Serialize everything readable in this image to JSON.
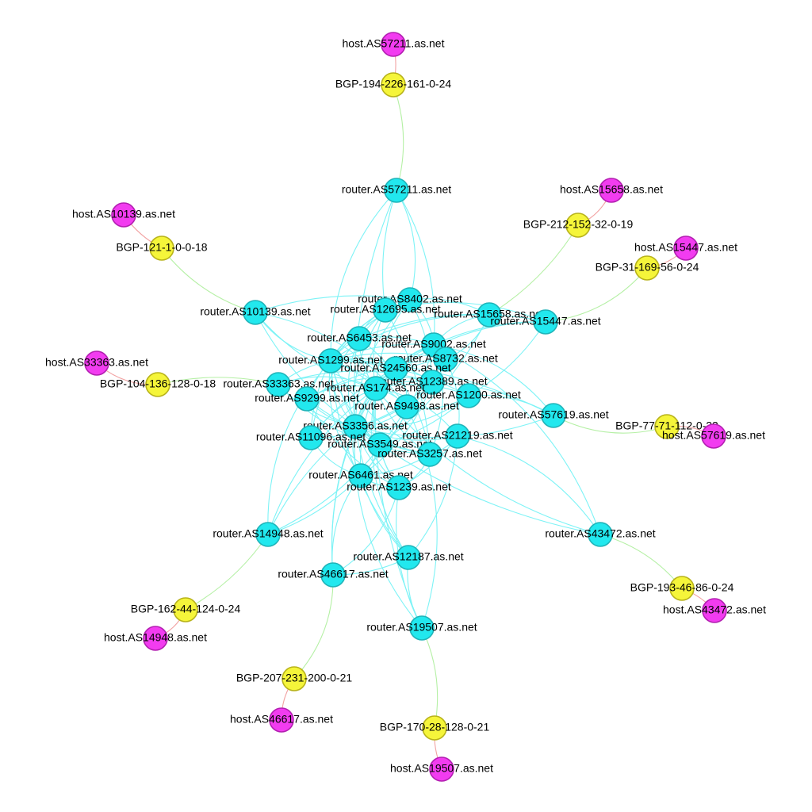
{
  "colors": {
    "router_fill": "#22e8ee",
    "router_stroke": "#1fb3b8",
    "bgp_fill": "#f5f53a",
    "bgp_stroke": "#b7b21a",
    "host_fill": "#f23cf0",
    "host_stroke": "#b21fb0",
    "edge_router": "#7ef3f6",
    "edge_router_bgp": "#b5f0a5",
    "edge_bgp_host": "#f2a3a3"
  },
  "nodes": [
    {
      "id": "r57211",
      "type": "router",
      "label": "router.AS57211.as.net"
    },
    {
      "id": "r8402",
      "type": "router",
      "label": "router.AS8402.as.net"
    },
    {
      "id": "r12695",
      "type": "router",
      "label": "router.AS12695.as.net"
    },
    {
      "id": "r15658",
      "type": "router",
      "label": "router.AS15658.as.net"
    },
    {
      "id": "r15447",
      "type": "router",
      "label": "router.AS15447.as.net"
    },
    {
      "id": "r10139",
      "type": "router",
      "label": "router.AS10139.as.net"
    },
    {
      "id": "r6453",
      "type": "router",
      "label": "router.AS6453.as.net"
    },
    {
      "id": "r9002",
      "type": "router",
      "label": "router.AS9002.as.net"
    },
    {
      "id": "r1299",
      "type": "router",
      "label": "router.AS1299.as.net"
    },
    {
      "id": "r8732",
      "type": "router",
      "label": "router.AS8732.as.net"
    },
    {
      "id": "r24560",
      "type": "router",
      "label": "router.AS24560.as.net"
    },
    {
      "id": "r33363",
      "type": "router",
      "label": "router.AS33363.as.net"
    },
    {
      "id": "r12389",
      "type": "router",
      "label": "router.AS12389.as.net"
    },
    {
      "id": "r174",
      "type": "router",
      "label": "router.AS174.as.net"
    },
    {
      "id": "r1200",
      "type": "router",
      "label": "router.AS1200.as.net"
    },
    {
      "id": "r9299",
      "type": "router",
      "label": "router.AS9299.as.net"
    },
    {
      "id": "r9498",
      "type": "router",
      "label": "router.AS9498.as.net"
    },
    {
      "id": "r57619",
      "type": "router",
      "label": "router.AS57619.as.net"
    },
    {
      "id": "r3356",
      "type": "router",
      "label": "router.AS3356.as.net"
    },
    {
      "id": "r11096",
      "type": "router",
      "label": "router.AS11096.as.net"
    },
    {
      "id": "r21219",
      "type": "router",
      "label": "router.AS21219.as.net"
    },
    {
      "id": "r3549",
      "type": "router",
      "label": "router.AS3549.as.net"
    },
    {
      "id": "r3257",
      "type": "router",
      "label": "router.AS3257.as.net"
    },
    {
      "id": "r6461",
      "type": "router",
      "label": "router.AS6461.as.net"
    },
    {
      "id": "r1239",
      "type": "router",
      "label": "router.AS1239.as.net"
    },
    {
      "id": "r14948",
      "type": "router",
      "label": "router.AS14948.as.net"
    },
    {
      "id": "r43472",
      "type": "router",
      "label": "router.AS43472.as.net"
    },
    {
      "id": "r12187",
      "type": "router",
      "label": "router.AS12187.as.net"
    },
    {
      "id": "r46617",
      "type": "router",
      "label": "router.AS46617.as.net"
    },
    {
      "id": "r19507",
      "type": "router",
      "label": "router.AS19507.as.net"
    },
    {
      "id": "b57211",
      "type": "bgp",
      "label": "BGP-194-226-161-0-24"
    },
    {
      "id": "b15658",
      "type": "bgp",
      "label": "BGP-212-152-32-0-19"
    },
    {
      "id": "b15447",
      "type": "bgp",
      "label": "BGP-31-169-56-0-24"
    },
    {
      "id": "b10139",
      "type": "bgp",
      "label": "BGP-121-1-0-0-18"
    },
    {
      "id": "b33363",
      "type": "bgp",
      "label": "BGP-104-136-128-0-18"
    },
    {
      "id": "b57619",
      "type": "bgp",
      "label": "BGP-77-71-112-0-23"
    },
    {
      "id": "b43472",
      "type": "bgp",
      "label": "BGP-193-46-86-0-24"
    },
    {
      "id": "b14948",
      "type": "bgp",
      "label": "BGP-162-44-124-0-24"
    },
    {
      "id": "b46617",
      "type": "bgp",
      "label": "BGP-207-231-200-0-21"
    },
    {
      "id": "b19507",
      "type": "bgp",
      "label": "BGP-170-28-128-0-21"
    },
    {
      "id": "h57211",
      "type": "host",
      "label": "host.AS57211.as.net"
    },
    {
      "id": "h15658",
      "type": "host",
      "label": "host.AS15658.as.net"
    },
    {
      "id": "h15447",
      "type": "host",
      "label": "host.AS15447.as.net"
    },
    {
      "id": "h10139",
      "type": "host",
      "label": "host.AS10139.as.net"
    },
    {
      "id": "h33363",
      "type": "host",
      "label": "host.AS33363.as.net"
    },
    {
      "id": "h57619",
      "type": "host",
      "label": "host.AS57619.as.net"
    },
    {
      "id": "h43472",
      "type": "host",
      "label": "host.AS43472.as.net"
    },
    {
      "id": "h14948",
      "type": "host",
      "label": "host.AS14948.as.net"
    },
    {
      "id": "h46617",
      "type": "host",
      "label": "host.AS46617.as.net"
    },
    {
      "id": "h19507",
      "type": "host",
      "label": "host.AS19507.as.net"
    }
  ],
  "edges": [
    [
      "h57211",
      "b57211"
    ],
    [
      "b57211",
      "r57211"
    ],
    [
      "h15658",
      "b15658"
    ],
    [
      "b15658",
      "r15658"
    ],
    [
      "h15447",
      "b15447"
    ],
    [
      "b15447",
      "r15447"
    ],
    [
      "h10139",
      "b10139"
    ],
    [
      "b10139",
      "r10139"
    ],
    [
      "h33363",
      "b33363"
    ],
    [
      "b33363",
      "r33363"
    ],
    [
      "h57619",
      "b57619"
    ],
    [
      "b57619",
      "r57619"
    ],
    [
      "h43472",
      "b43472"
    ],
    [
      "b43472",
      "r43472"
    ],
    [
      "h14948",
      "b14948"
    ],
    [
      "b14948",
      "r14948"
    ],
    [
      "h46617",
      "b46617"
    ],
    [
      "b46617",
      "r46617"
    ],
    [
      "h19507",
      "b19507"
    ],
    [
      "b19507",
      "r19507"
    ],
    [
      "r57211",
      "r8402"
    ],
    [
      "r57211",
      "r12695"
    ],
    [
      "r57211",
      "r9002"
    ],
    [
      "r57211",
      "r1299"
    ],
    [
      "r57211",
      "r3356"
    ],
    [
      "r15658",
      "r8402"
    ],
    [
      "r15658",
      "r9002"
    ],
    [
      "r15658",
      "r3549"
    ],
    [
      "r15658",
      "r1299"
    ],
    [
      "r15658",
      "r8732"
    ],
    [
      "r15447",
      "r9002"
    ],
    [
      "r15447",
      "r12695"
    ],
    [
      "r15447",
      "r174"
    ],
    [
      "r15447",
      "r1200"
    ],
    [
      "r15447",
      "r6453"
    ],
    [
      "r10139",
      "r1299"
    ],
    [
      "r10139",
      "r3356"
    ],
    [
      "r10139",
      "r174"
    ],
    [
      "r10139",
      "r9498"
    ],
    [
      "r10139",
      "r8402"
    ],
    [
      "r33363",
      "r3356"
    ],
    [
      "r33363",
      "r174"
    ],
    [
      "r33363",
      "r1299"
    ],
    [
      "r33363",
      "r12389"
    ],
    [
      "r33363",
      "r3257"
    ],
    [
      "r57619",
      "r1299"
    ],
    [
      "r57619",
      "r3356"
    ],
    [
      "r57619",
      "r9002"
    ],
    [
      "r57619",
      "r12389"
    ],
    [
      "r57619",
      "r1200"
    ],
    [
      "r43472",
      "r9002"
    ],
    [
      "r43472",
      "r3356"
    ],
    [
      "r43472",
      "r174"
    ],
    [
      "r43472",
      "r21219"
    ],
    [
      "r14948",
      "r3356"
    ],
    [
      "r14948",
      "r174"
    ],
    [
      "r14948",
      "r1299"
    ],
    [
      "r14948",
      "r6461"
    ],
    [
      "r14948",
      "r9498"
    ],
    [
      "r46617",
      "r1239"
    ],
    [
      "r46617",
      "r3356"
    ],
    [
      "r46617",
      "r174"
    ],
    [
      "r46617",
      "r6461"
    ],
    [
      "r46617",
      "r12187"
    ],
    [
      "r19507",
      "r1239"
    ],
    [
      "r19507",
      "r3356"
    ],
    [
      "r19507",
      "r174"
    ],
    [
      "r19507",
      "r12187"
    ],
    [
      "r19507",
      "r9498"
    ],
    [
      "r12187",
      "r3356"
    ],
    [
      "r12187",
      "r1299"
    ],
    [
      "r12187",
      "r174"
    ],
    [
      "r12187",
      "r6461"
    ],
    [
      "r12187",
      "r21219"
    ],
    [
      "r8402",
      "r3356"
    ],
    [
      "r8402",
      "r1299"
    ],
    [
      "r8402",
      "r174"
    ],
    [
      "r8402",
      "r9002"
    ],
    [
      "r8402",
      "r12389"
    ],
    [
      "r8402",
      "r6453"
    ],
    [
      "r12695",
      "r3356"
    ],
    [
      "r12695",
      "r1299"
    ],
    [
      "r12695",
      "r174"
    ],
    [
      "r12695",
      "r6453"
    ],
    [
      "r12695",
      "r3257"
    ],
    [
      "r12695",
      "r9299"
    ],
    [
      "r6453",
      "r3356"
    ],
    [
      "r6453",
      "r1299"
    ],
    [
      "r6453",
      "r174"
    ],
    [
      "r6453",
      "r3257"
    ],
    [
      "r6453",
      "r9002"
    ],
    [
      "r6453",
      "r11096"
    ],
    [
      "r9002",
      "r3356"
    ],
    [
      "r9002",
      "r1299"
    ],
    [
      "r9002",
      "r174"
    ],
    [
      "r9002",
      "r3257"
    ],
    [
      "r9002",
      "r6461"
    ],
    [
      "r9002",
      "r24560"
    ],
    [
      "r1299",
      "r3356"
    ],
    [
      "r1299",
      "r174"
    ],
    [
      "r1299",
      "r3257"
    ],
    [
      "r1299",
      "r6461"
    ],
    [
      "r1299",
      "r1239"
    ],
    [
      "r1299",
      "r3549"
    ],
    [
      "r8732",
      "r3356"
    ],
    [
      "r8732",
      "r1299"
    ],
    [
      "r8732",
      "r174"
    ],
    [
      "r8732",
      "r9498"
    ],
    [
      "r8732",
      "r9299"
    ],
    [
      "r8732",
      "r21219"
    ],
    [
      "r24560",
      "r3356"
    ],
    [
      "r24560",
      "r1299"
    ],
    [
      "r24560",
      "r174"
    ],
    [
      "r24560",
      "r9498"
    ],
    [
      "r24560",
      "r11096"
    ],
    [
      "r12389",
      "r3356"
    ],
    [
      "r12389",
      "r1299"
    ],
    [
      "r12389",
      "r174"
    ],
    [
      "r12389",
      "r6461"
    ],
    [
      "r12389",
      "r9299"
    ],
    [
      "r174",
      "r3356"
    ],
    [
      "r174",
      "r3257"
    ],
    [
      "r174",
      "r1239"
    ],
    [
      "r174",
      "r6461"
    ],
    [
      "r174",
      "r3549"
    ],
    [
      "r1200",
      "r3356"
    ],
    [
      "r1200",
      "r1299"
    ],
    [
      "r1200",
      "r174"
    ],
    [
      "r1200",
      "r9498"
    ],
    [
      "r1200",
      "r3549"
    ],
    [
      "r9299",
      "r3356"
    ],
    [
      "r9299",
      "r174"
    ],
    [
      "r9299",
      "r3257"
    ],
    [
      "r9299",
      "r1239"
    ],
    [
      "r9498",
      "r3356"
    ],
    [
      "r9498",
      "r1299"
    ],
    [
      "r9498",
      "r174"
    ],
    [
      "r9498",
      "r3549"
    ],
    [
      "r3356",
      "r3257"
    ],
    [
      "r3356",
      "r1239"
    ],
    [
      "r3356",
      "r6461"
    ],
    [
      "r3356",
      "r3549"
    ],
    [
      "r3356",
      "r21219"
    ],
    [
      "r11096",
      "r3356"
    ],
    [
      "r11096",
      "r1299"
    ],
    [
      "r11096",
      "r174"
    ],
    [
      "r11096",
      "r6461"
    ],
    [
      "r21219",
      "r1239"
    ],
    [
      "r21219",
      "r3257"
    ],
    [
      "r21219",
      "r174"
    ],
    [
      "r3549",
      "r1239"
    ],
    [
      "r3549",
      "r6461"
    ],
    [
      "r3257",
      "r1239"
    ],
    [
      "r3257",
      "r6461"
    ],
    [
      "r6461",
      "r1239"
    ]
  ]
}
